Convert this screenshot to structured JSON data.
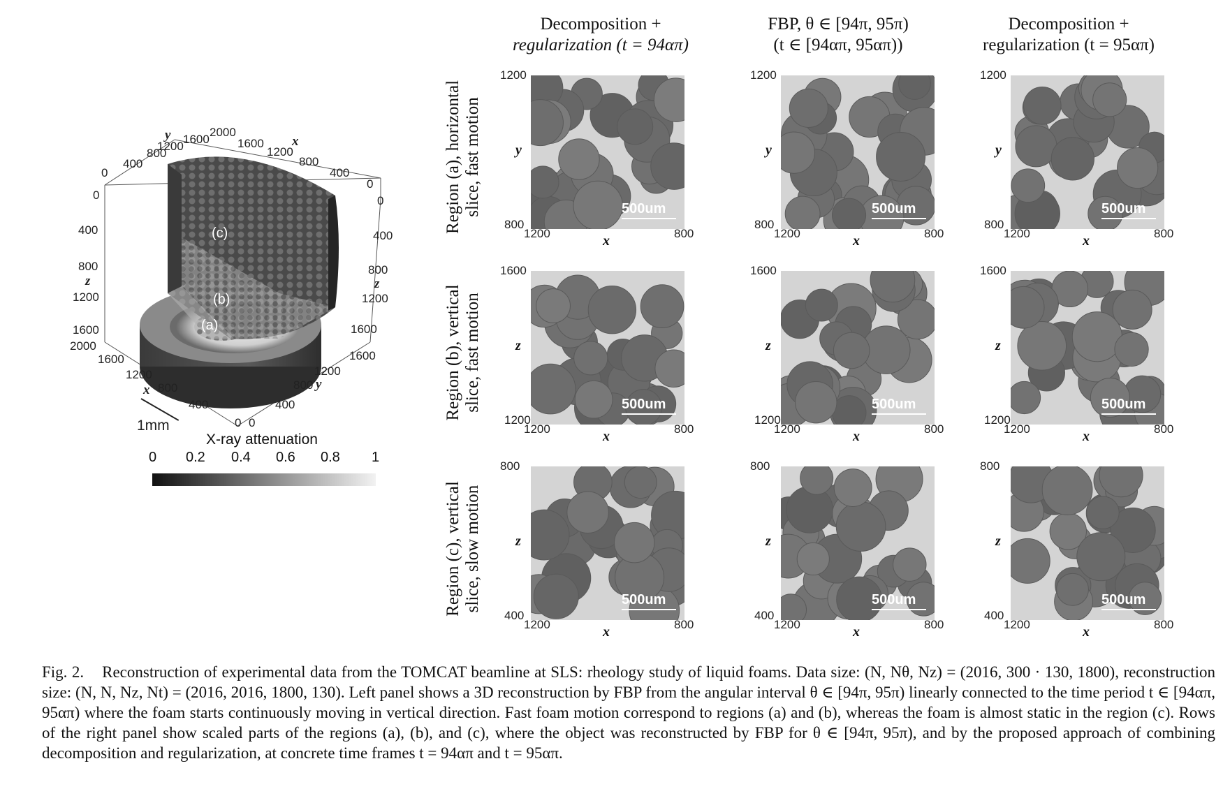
{
  "columns": [
    {
      "line1": "Decomposition +",
      "line2": "regularization (t = 94απ)"
    },
    {
      "line1": "FBP, θ ∈ [94π, 95π)",
      "line2": "(t ∈ [94απ, 95απ))"
    },
    {
      "line1": "Decomposition +",
      "line2": "regularization (t = 95απ)"
    }
  ],
  "rows": [
    {
      "line1": "Region (a), horizontal",
      "line2": "slice, fast motion",
      "y_var": "y",
      "y_top": "1200",
      "y_bot": "800",
      "x_var": "x",
      "x_left": "1200",
      "x_right": "800"
    },
    {
      "line1": "Region (b), vertical",
      "line2": "slice, fast motion",
      "y_var": "z",
      "y_top": "1600",
      "y_bot": "1200",
      "x_var": "x",
      "x_left": "1200",
      "x_right": "800"
    },
    {
      "line1": "Region (c), vertical",
      "line2": "slice, slow motion",
      "y_var": "z",
      "y_top": "800",
      "y_bot": "400",
      "x_var": "x",
      "x_left": "1200",
      "x_right": "800"
    }
  ],
  "scale_label": "500um",
  "render3d": {
    "labels": {
      "region_a": "(a)",
      "region_b": "(b)",
      "region_c": "(c)"
    },
    "axis_ticks": {
      "top_y": [
        "y",
        "800",
        "1200",
        "1600",
        "2000"
      ],
      "top_left": [
        "0",
        "400"
      ],
      "top_x": [
        "1600",
        "1200",
        "x",
        "800",
        "400",
        "0"
      ],
      "left_z": [
        "0",
        "400",
        "800",
        "z",
        "1200",
        "1600",
        "2000"
      ],
      "right_z": [
        "0",
        "400",
        "800",
        "z",
        "1200",
        "1600"
      ],
      "bottom_x": [
        "1600",
        "1200",
        "x",
        "800",
        "400",
        "0"
      ],
      "bottom_y": [
        "1600",
        "1200",
        "800",
        "y",
        "400",
        "0"
      ]
    },
    "scale": "1mm",
    "colorbar_title": "X-ray attenuation",
    "colorbar_ticks": [
      "0",
      "0.2",
      "0.4",
      "0.6",
      "0.8",
      "1"
    ]
  },
  "caption": {
    "label": "Fig. 2.",
    "text": "Reconstruction of experimental data from the TOMCAT beamline at SLS: rheology study of liquid foams. Data size: (N, Nθ, Nz) = (2016, 300 · 130, 1800), reconstruction size: (N, N, Nz, Nt) = (2016, 2016, 1800, 130). Left panel shows a 3D reconstruction by FBP from the angular interval θ ∈ [94π, 95π) linearly connected to the time period t ∈ [94απ, 95απ) where the foam starts continuously moving in vertical direction. Fast foam motion correspond to regions (a) and (b), whereas the foam is almost static in the region (c). Rows of the right panel show scaled parts of the regions (a), (b), and (c), where the object was reconstructed by FBP for θ ∈ [94π, 95π), and by the proposed approach of combining decomposition and regularization, at concrete time frames t = 94απ and t = 95απ."
  }
}
